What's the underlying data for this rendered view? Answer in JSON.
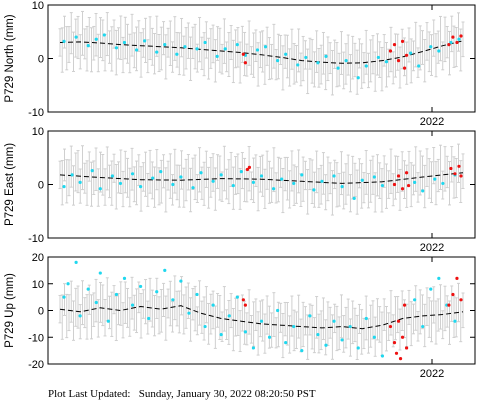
{
  "chart_data": [
    {
      "type": "scatter",
      "ylabel": "P729 North (mm)",
      "ylim": [
        -10,
        10
      ],
      "yticks": [
        10,
        0,
        -10
      ],
      "x_tick_label": "2022",
      "trend": [
        [
          0,
          3.0
        ],
        [
          0.05,
          3.1
        ],
        [
          0.1,
          2.9
        ],
        [
          0.15,
          2.6
        ],
        [
          0.2,
          2.4
        ],
        [
          0.25,
          2.2
        ],
        [
          0.3,
          2.0
        ],
        [
          0.35,
          1.7
        ],
        [
          0.4,
          1.4
        ],
        [
          0.45,
          1.1
        ],
        [
          0.5,
          0.7
        ],
        [
          0.55,
          0.2
        ],
        [
          0.6,
          -0.4
        ],
        [
          0.65,
          -0.7
        ],
        [
          0.7,
          -0.9
        ],
        [
          0.75,
          -0.8
        ],
        [
          0.8,
          -0.4
        ],
        [
          0.85,
          0.3
        ],
        [
          0.9,
          1.3
        ],
        [
          0.95,
          2.4
        ],
        [
          1.0,
          3.3
        ]
      ],
      "cyan_points": [
        [
          0.01,
          3.2
        ],
        [
          0.04,
          4.0
        ],
        [
          0.07,
          2.4
        ],
        [
          0.09,
          3.6
        ],
        [
          0.11,
          4.4
        ],
        [
          0.14,
          2.0
        ],
        [
          0.16,
          3.0
        ],
        [
          0.19,
          1.6
        ],
        [
          0.21,
          3.3
        ],
        [
          0.24,
          1.2
        ],
        [
          0.26,
          2.6
        ],
        [
          0.29,
          0.8
        ],
        [
          0.31,
          2.2
        ],
        [
          0.34,
          1.8
        ],
        [
          0.36,
          3.0
        ],
        [
          0.39,
          0.4
        ],
        [
          0.41,
          1.8
        ],
        [
          0.44,
          2.6
        ],
        [
          0.46,
          0.6
        ],
        [
          0.49,
          1.6
        ],
        [
          0.51,
          2.2
        ],
        [
          0.54,
          -0.4
        ],
        [
          0.56,
          0.8
        ],
        [
          0.59,
          -1.2
        ],
        [
          0.61,
          0.2
        ],
        [
          0.64,
          -0.8
        ],
        [
          0.66,
          0.4
        ],
        [
          0.69,
          -1.8
        ],
        [
          0.71,
          -0.4
        ],
        [
          0.74,
          -3.6
        ],
        [
          0.76,
          -1.4
        ],
        [
          0.79,
          0.2
        ],
        [
          0.81,
          -0.6
        ],
        [
          0.87,
          1.0
        ],
        [
          0.89,
          -1.4
        ],
        [
          0.92,
          2.2
        ],
        [
          0.94,
          1.4
        ],
        [
          0.97,
          3.0
        ],
        [
          0.99,
          3.6
        ]
      ],
      "red_points": [
        [
          0.455,
          0.8
        ],
        [
          0.46,
          -0.8
        ],
        [
          0.82,
          1.4
        ],
        [
          0.83,
          2.6
        ],
        [
          0.84,
          -0.4
        ],
        [
          0.85,
          3.2
        ],
        [
          0.855,
          -1.8
        ],
        [
          0.86,
          0.6
        ],
        [
          0.965,
          2.6
        ],
        [
          0.975,
          4.0
        ],
        [
          0.985,
          3.0
        ],
        [
          0.995,
          4.2
        ]
      ]
    },
    {
      "type": "scatter",
      "ylabel": "P729 East (mm)",
      "ylim": [
        -10,
        10
      ],
      "yticks": [
        10,
        0,
        -10
      ],
      "x_tick_label": "2022",
      "trend": [
        [
          0,
          1.8
        ],
        [
          0.1,
          1.3
        ],
        [
          0.2,
          0.9
        ],
        [
          0.3,
          0.8
        ],
        [
          0.4,
          1.1
        ],
        [
          0.5,
          1.0
        ],
        [
          0.6,
          0.6
        ],
        [
          0.7,
          0.2
        ],
        [
          0.8,
          0.5
        ],
        [
          0.9,
          1.4
        ],
        [
          1.0,
          2.2
        ]
      ],
      "cyan_points": [
        [
          0.01,
          -0.4
        ],
        [
          0.03,
          1.8
        ],
        [
          0.05,
          0.4
        ],
        [
          0.08,
          2.6
        ],
        [
          0.1,
          -0.8
        ],
        [
          0.13,
          1.6
        ],
        [
          0.15,
          0.2
        ],
        [
          0.18,
          2.0
        ],
        [
          0.2,
          -0.4
        ],
        [
          0.23,
          1.2
        ],
        [
          0.25,
          2.4
        ],
        [
          0.28,
          0.0
        ],
        [
          0.3,
          1.4
        ],
        [
          0.33,
          -0.6
        ],
        [
          0.35,
          2.2
        ],
        [
          0.38,
          0.6
        ],
        [
          0.4,
          1.8
        ],
        [
          0.43,
          -0.2
        ],
        [
          0.45,
          2.4
        ],
        [
          0.48,
          0.4
        ],
        [
          0.5,
          1.6
        ],
        [
          0.53,
          -0.8
        ],
        [
          0.55,
          1.0
        ],
        [
          0.58,
          0.2
        ],
        [
          0.6,
          1.8
        ],
        [
          0.63,
          -1.0
        ],
        [
          0.65,
          0.6
        ],
        [
          0.68,
          1.6
        ],
        [
          0.7,
          -0.4
        ],
        [
          0.73,
          -2.6
        ],
        [
          0.75,
          0.8
        ],
        [
          0.78,
          1.4
        ],
        [
          0.8,
          -0.2
        ],
        [
          0.88,
          0.4
        ],
        [
          0.9,
          -1.2
        ],
        [
          0.93,
          1.0
        ],
        [
          0.95,
          0.2
        ],
        [
          0.98,
          1.8
        ]
      ],
      "red_points": [
        [
          0.465,
          2.8
        ],
        [
          0.47,
          3.2
        ],
        [
          0.83,
          0.0
        ],
        [
          0.84,
          1.6
        ],
        [
          0.85,
          -0.8
        ],
        [
          0.86,
          2.2
        ],
        [
          0.865,
          -0.2
        ],
        [
          0.97,
          3.0
        ],
        [
          0.98,
          2.0
        ],
        [
          0.99,
          3.4
        ],
        [
          0.995,
          1.6
        ]
      ]
    },
    {
      "type": "scatter",
      "ylabel": "P729 Up (mm)",
      "ylim": [
        -20,
        20
      ],
      "yticks": [
        20,
        10,
        0,
        -10,
        -20
      ],
      "x_tick_label": "2022",
      "trend": [
        [
          0,
          0.5
        ],
        [
          0.05,
          -0.5
        ],
        [
          0.1,
          1.0
        ],
        [
          0.15,
          0.0
        ],
        [
          0.2,
          1.5
        ],
        [
          0.25,
          0.5
        ],
        [
          0.3,
          1.8
        ],
        [
          0.35,
          -1.0
        ],
        [
          0.4,
          -3.0
        ],
        [
          0.45,
          -4.0
        ],
        [
          0.5,
          -5.0
        ],
        [
          0.55,
          -5.5
        ],
        [
          0.6,
          -6.0
        ],
        [
          0.65,
          -6.5
        ],
        [
          0.7,
          -6.0
        ],
        [
          0.75,
          -6.8
        ],
        [
          0.8,
          -5.5
        ],
        [
          0.85,
          -3.0
        ],
        [
          0.9,
          -2.0
        ],
        [
          0.95,
          -1.5
        ],
        [
          1.0,
          -0.5
        ]
      ],
      "cyan_points": [
        [
          0.01,
          5.0
        ],
        [
          0.02,
          10.0
        ],
        [
          0.04,
          18.0
        ],
        [
          0.05,
          -2.0
        ],
        [
          0.07,
          8.0
        ],
        [
          0.09,
          3.0
        ],
        [
          0.1,
          14.0
        ],
        [
          0.12,
          -4.0
        ],
        [
          0.14,
          6.0
        ],
        [
          0.16,
          12.0
        ],
        [
          0.18,
          2.0
        ],
        [
          0.2,
          9.0
        ],
        [
          0.22,
          -3.0
        ],
        [
          0.24,
          7.0
        ],
        [
          0.26,
          15.0
        ],
        [
          0.28,
          4.0
        ],
        [
          0.3,
          11.0
        ],
        [
          0.32,
          -1.0
        ],
        [
          0.34,
          6.0
        ],
        [
          0.36,
          -6.0
        ],
        [
          0.38,
          2.0
        ],
        [
          0.4,
          -9.0
        ],
        [
          0.42,
          -2.0
        ],
        [
          0.44,
          5.0
        ],
        [
          0.46,
          -8.0
        ],
        [
          0.48,
          -14.0
        ],
        [
          0.5,
          -4.0
        ],
        [
          0.52,
          -10.0
        ],
        [
          0.54,
          0.0
        ],
        [
          0.56,
          -12.0
        ],
        [
          0.58,
          -6.0
        ],
        [
          0.6,
          -15.0
        ],
        [
          0.62,
          -2.0
        ],
        [
          0.64,
          -9.0
        ],
        [
          0.66,
          -13.0
        ],
        [
          0.68,
          -4.0
        ],
        [
          0.7,
          -11.0
        ],
        [
          0.72,
          -6.0
        ],
        [
          0.74,
          -14.0
        ],
        [
          0.76,
          -3.0
        ],
        [
          0.78,
          -10.0
        ],
        [
          0.8,
          -17.0
        ],
        [
          0.88,
          4.0
        ],
        [
          0.9,
          -6.0
        ],
        [
          0.92,
          8.0
        ],
        [
          0.94,
          12.0
        ],
        [
          0.96,
          2.0
        ],
        [
          0.98,
          -4.0
        ]
      ],
      "red_points": [
        [
          0.455,
          4.0
        ],
        [
          0.46,
          2.0
        ],
        [
          0.82,
          -6.0
        ],
        [
          0.83,
          -12.0
        ],
        [
          0.835,
          -16.0
        ],
        [
          0.84,
          -4.0
        ],
        [
          0.845,
          -18.0
        ],
        [
          0.85,
          -10.0
        ],
        [
          0.855,
          2.0
        ],
        [
          0.86,
          -14.0
        ],
        [
          0.965,
          2.0
        ],
        [
          0.975,
          6.0
        ],
        [
          0.985,
          12.0
        ],
        [
          0.995,
          4.0
        ]
      ]
    }
  ],
  "footer": {
    "label": "Plot Last Updated:",
    "timestamp": "Sunday, January 30, 2022 08:20:50 PST"
  },
  "colors": {
    "cyan": "#1fd7ee",
    "red": "#ee1111",
    "errorbar": "#cfcfcf",
    "trend": "#000000"
  }
}
